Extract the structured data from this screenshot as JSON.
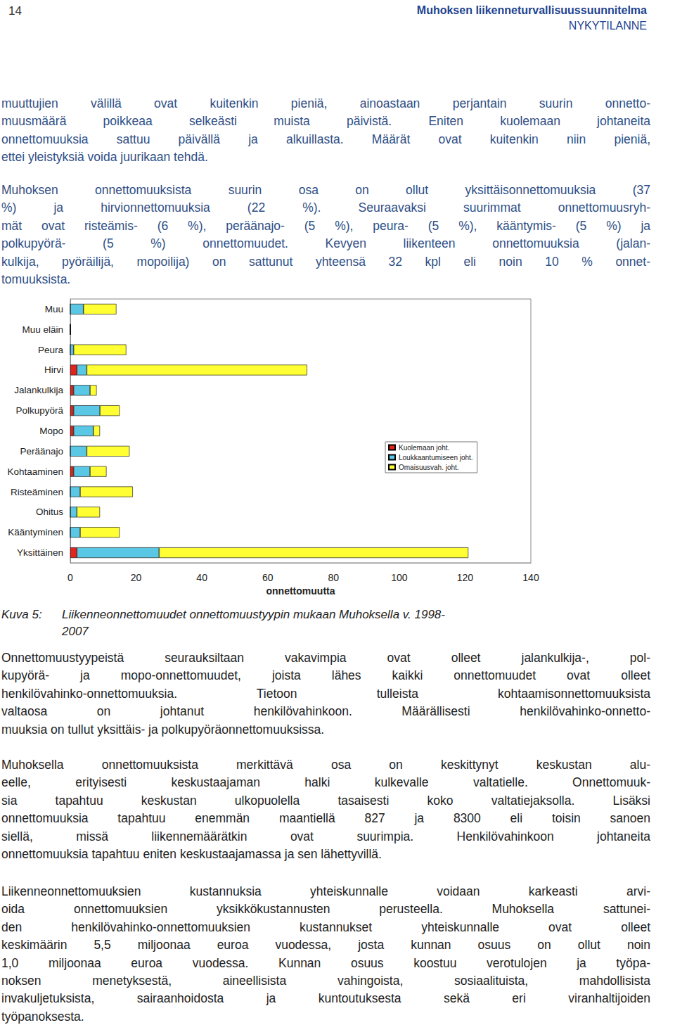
{
  "header": {
    "page_number": "14",
    "title": "Muhoksen liikenneturvallisuussuunnitelma",
    "section": "NYKYTILANNE"
  },
  "paragraphs_before": [
    [
      "muuttujien välillä ovat kuitenkin pieniä, ainoastaan perjantain suurin onnetto-",
      "muusmäärä poikkeaa selkeästi muista päivistä. Eniten kuolemaan johtaneita",
      "onnettomuuksia sattuu päivällä ja alkuillasta. Määrät ovat kuitenkin niin pieniä,",
      "ettei yleistyksiä voida juurikaan tehdä."
    ],
    [
      "Muhoksen onnettomuuksista suurin osa on ollut yksittäisonnettomuuksia (37",
      "%) ja hirvionnettomuuksia (22 %). Seuraavaksi suurimmat onnettomuusryh-",
      "mät ovat risteämis- (6 %), peräänajo- (5 %), peura- (5 %), kääntymis- (5 %) ja",
      "polkupyörä- (5 %) onnettomuudet. Kevyen liikenteen onnettomuuksia (jalan-",
      "kulkija, pyöräilijä, mopoilija) on sattunut yhteensä 32 kpl eli noin 10 % onnet-",
      "tomuuksista."
    ]
  ],
  "chart_data": {
    "type": "bar",
    "orientation": "horizontal",
    "stacked": true,
    "categories": [
      "Muu",
      "Muu eläin",
      "Peura",
      "Hirvi",
      "Jalankulkija",
      "Polkupyörä",
      "Mopo",
      "Peräänajo",
      "Kohtaaminen",
      "Risteäminen",
      "Ohitus",
      "Kääntyminen",
      "Yksittäinen"
    ],
    "series": [
      {
        "name": "Kuolemaan joht.",
        "color": "#e3231c",
        "values": [
          0,
          0,
          0,
          2,
          1,
          1,
          1,
          0,
          1,
          0,
          0,
          0,
          2
        ]
      },
      {
        "name": "Loukkaantumiseen joht.",
        "color": "#5ac8e4",
        "values": [
          4,
          0,
          1,
          3,
          5,
          8,
          6,
          5,
          5,
          3,
          2,
          3,
          25
        ]
      },
      {
        "name": "Omaisuusvah. joht.",
        "color": "#ffff33",
        "values": [
          10,
          0,
          16,
          67,
          2,
          6,
          2,
          13,
          5,
          16,
          7,
          12,
          94
        ]
      }
    ],
    "xlabel": "onnettomuutta",
    "xlim": [
      0,
      140
    ],
    "xticks": [
      0,
      20,
      40,
      60,
      80,
      100,
      120,
      140
    ],
    "legend": "right",
    "grid": false
  },
  "caption": {
    "label": "Kuva 5:",
    "lines": [
      "Liikenneonnettomuudet onnettomuustyypin mukaan Muhoksella v. 1998-",
      "2007"
    ]
  },
  "paragraphs_after": [
    [
      "Onnettomuustyypeistä seurauksiltaan vakavimpia ovat olleet jalankulkija-, pol-",
      "kupyörä- ja mopo-onnettomuudet, joista lähes kaikki onnettomuudet ovat olleet",
      "henkilövahinko-onnettomuuksia. Tietoon tulleista kohtaamisonnettomuuksista",
      "valtaosa on johtanut henkilövahinkoon. Määrällisesti henkilövahinko-onnetto-",
      "muuksia on tullut yksittäis- ja polkupyöräonnettomuuksissa."
    ],
    [
      "Muhoksella onnettomuuksista merkittävä osa on keskittynyt keskustan alu-",
      "eelle, erityisesti keskustaajaman halki kulkevalle valtatielle. Onnettomuuk-",
      "sia tapahtuu keskustan ulkopuolella tasaisesti koko valtatiejaksolla. Lisäksi",
      "onnettomuuksia tapahtuu enemmän maantiellä 827 ja 8300 eli toisin sanoen",
      "siellä, missä liikennemäärätkin ovat suurimpia. Henkilövahinkoon johtaneita",
      "onnettomuuksia tapahtuu eniten keskustaajamassa ja sen lähettyvillä."
    ],
    [
      "Liikenneonnettomuuksien kustannuksia yhteiskunnalle voidaan karkeasti arvi-",
      "oida onnettomuuksien yksikkökustannusten perusteella. Muhoksella sattunei-",
      "den henkilövahinko-onnettomuuksien kustannukset yhteiskunnalle ovat olleet",
      "keskimäärin 5,5 miljoonaa euroa vuodessa, josta kunnan osuus on ollut noin",
      "1,0 miljoonaa euroa vuodessa. Kunnan osuus koostuu verotulojen ja työpa-",
      "noksen menetyksestä, aineellisista vahingoista, sosiaalituista, mahdollisista",
      "invakuljetuksista, sairaanhoidosta ja kuntoutuksesta sekä eri viranhaltijoiden",
      "työpanoksesta."
    ]
  ]
}
